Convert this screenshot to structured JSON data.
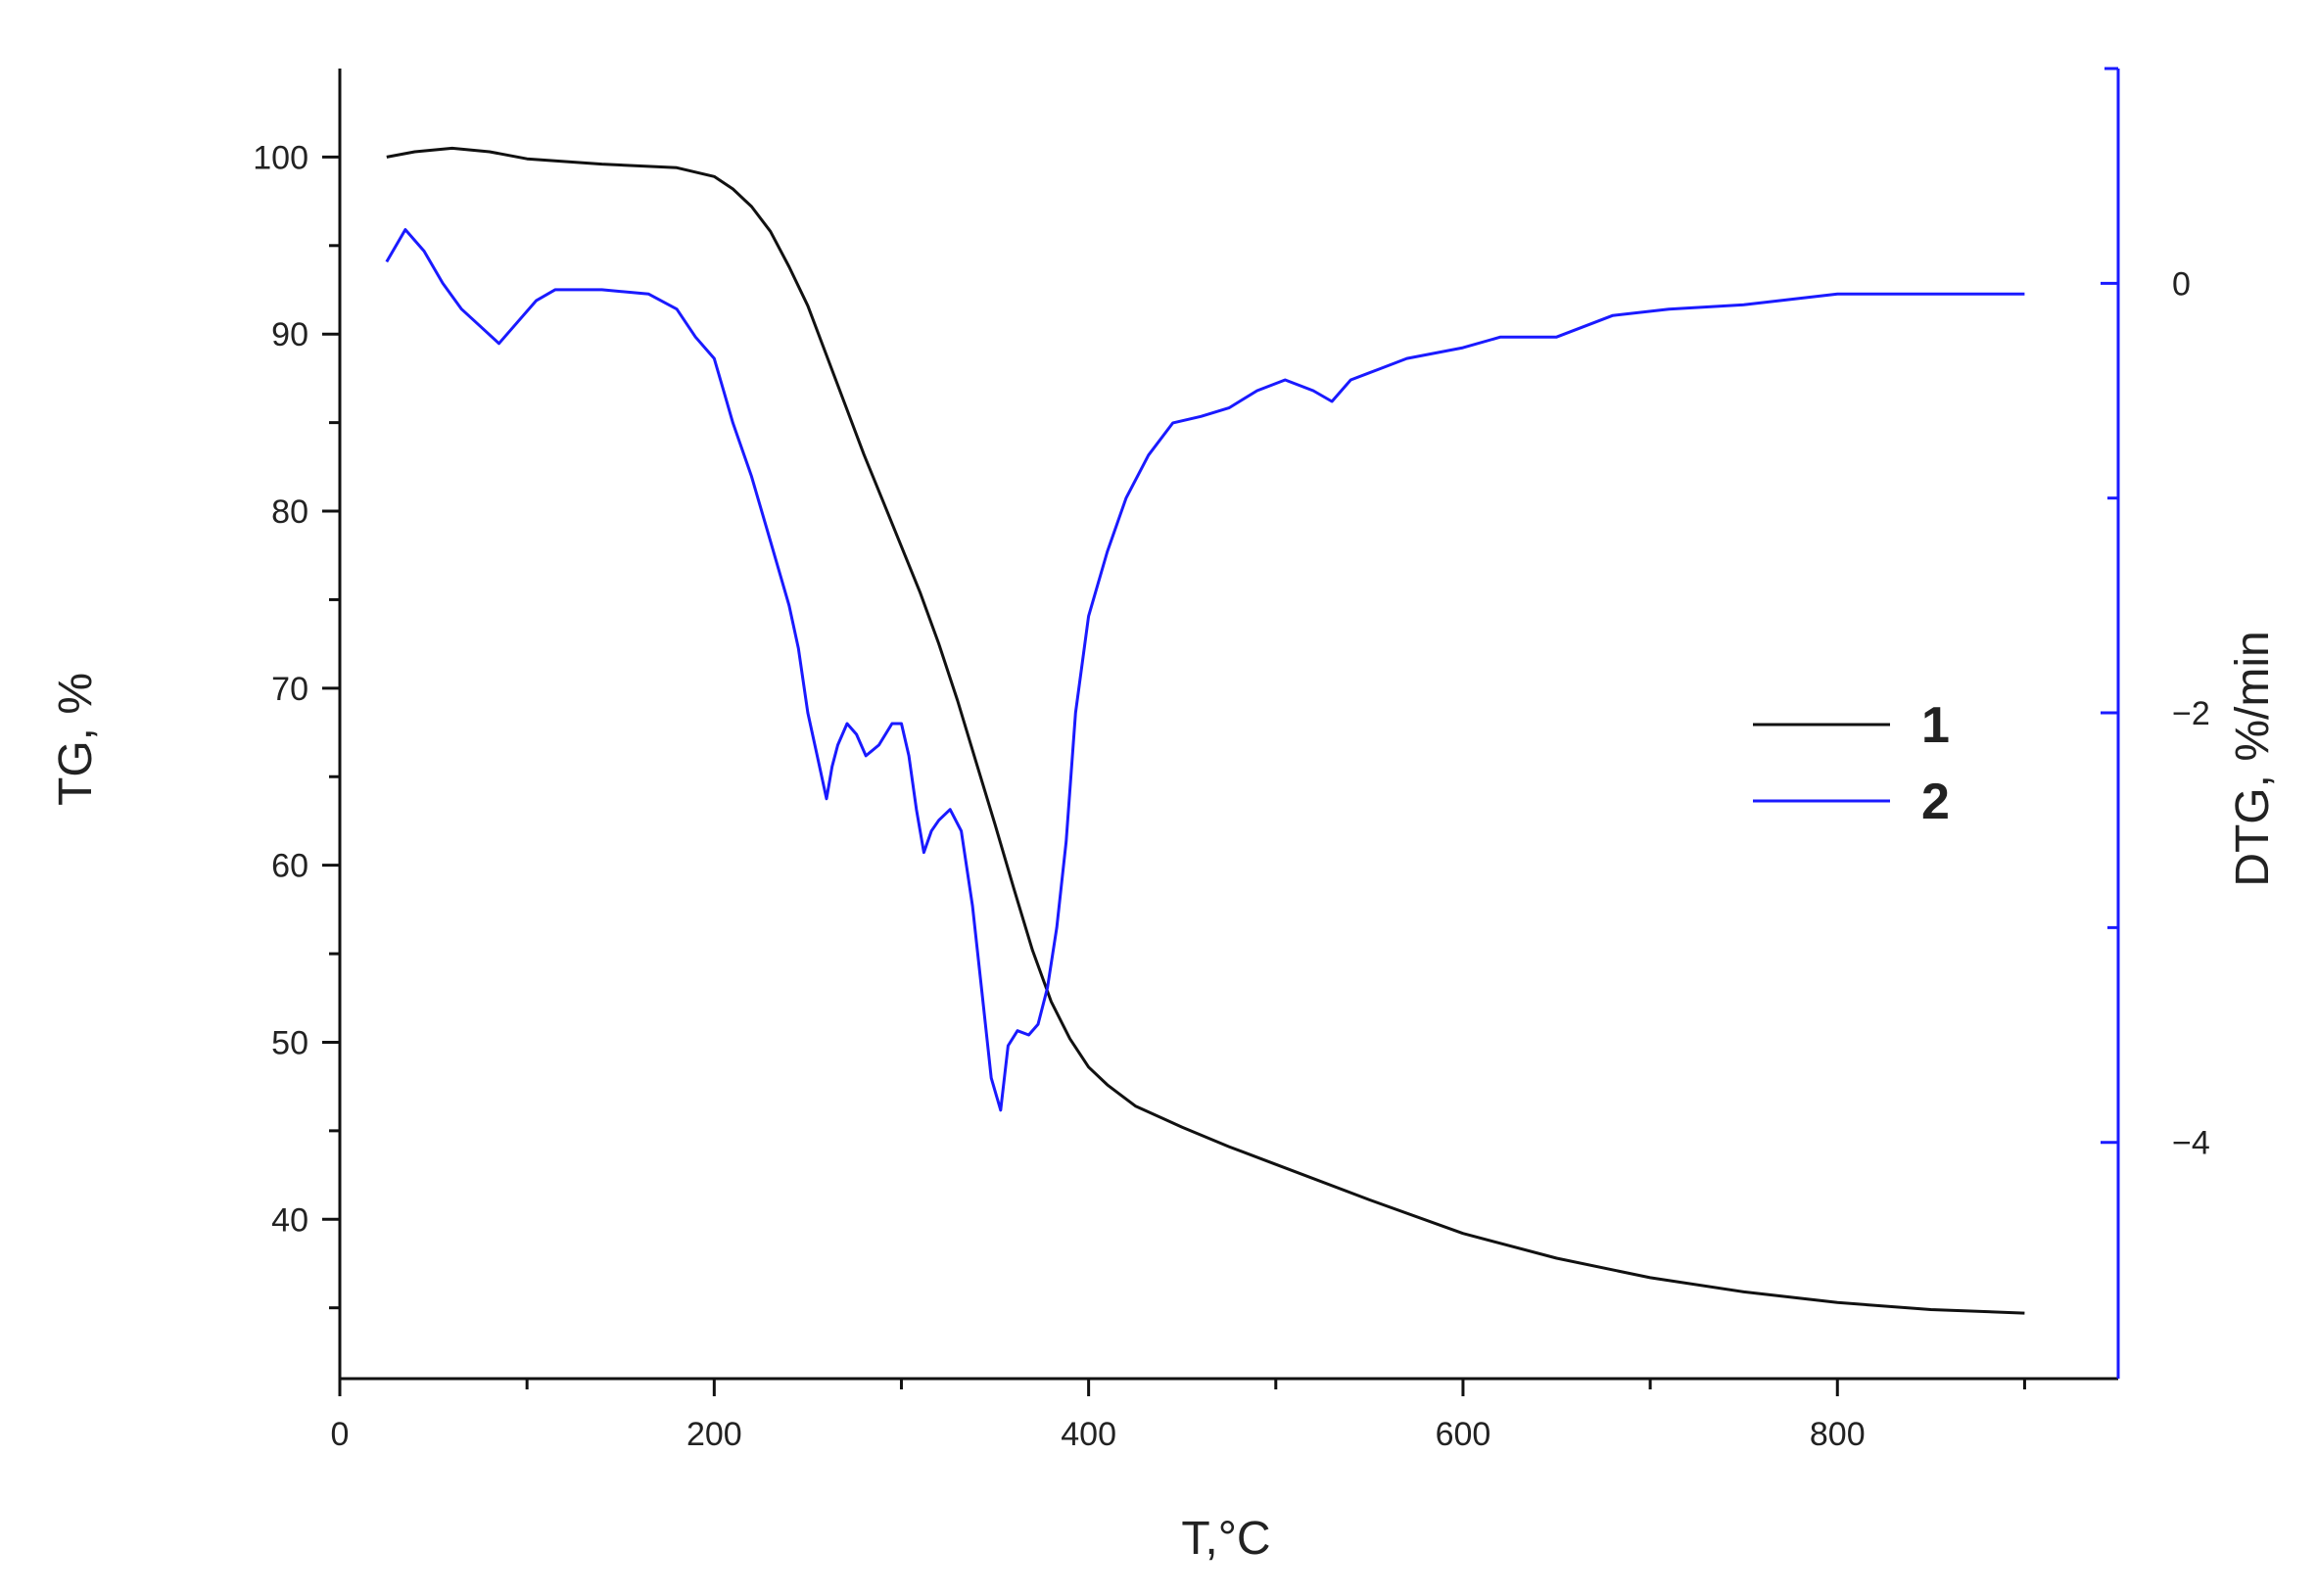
{
  "chart_data": {
    "type": "line",
    "title": "",
    "xlabel": "T,°C",
    "ylabel_left": "TG, %",
    "ylabel_right": "DTG, %/min",
    "xlim": [
      0,
      950
    ],
    "ylim_left": [
      31,
      105
    ],
    "ylim_right": [
      -5.1,
      1.0
    ],
    "x_ticks": [
      0,
      200,
      400,
      600,
      800
    ],
    "y_left_ticks": [
      40,
      50,
      60,
      70,
      80,
      90,
      100
    ],
    "y_right_ticks": [
      0,
      -2,
      -4
    ],
    "x_tick_labels": [
      "0",
      "200",
      "400",
      "600",
      "800"
    ],
    "y_left_tick_labels": [
      "40",
      "50",
      "60",
      "70",
      "80",
      "90",
      "100"
    ],
    "y_right_tick_labels": [
      "0",
      "−2",
      "−4"
    ],
    "grid": false,
    "legend_position": "center-right",
    "series": [
      {
        "name": "1",
        "axis": "left",
        "color": "#111111",
        "points": [
          [
            25,
            100
          ],
          [
            40,
            100.3
          ],
          [
            60,
            100.5
          ],
          [
            80,
            100.3
          ],
          [
            100,
            99.9
          ],
          [
            140,
            99.6
          ],
          [
            180,
            99.4
          ],
          [
            200,
            98.9
          ],
          [
            210,
            98.2
          ],
          [
            220,
            97.2
          ],
          [
            230,
            95.8
          ],
          [
            240,
            93.8
          ],
          [
            250,
            91.6
          ],
          [
            260,
            88.8
          ],
          [
            270,
            86.0
          ],
          [
            280,
            83.2
          ],
          [
            290,
            80.6
          ],
          [
            300,
            78.0
          ],
          [
            310,
            75.4
          ],
          [
            320,
            72.5
          ],
          [
            330,
            69.3
          ],
          [
            340,
            65.8
          ],
          [
            350,
            62.3
          ],
          [
            360,
            58.7
          ],
          [
            370,
            55.2
          ],
          [
            380,
            52.3
          ],
          [
            390,
            50.2
          ],
          [
            400,
            48.6
          ],
          [
            410,
            47.6
          ],
          [
            425,
            46.4
          ],
          [
            450,
            45.2
          ],
          [
            475,
            44.1
          ],
          [
            500,
            43.1
          ],
          [
            550,
            41.1
          ],
          [
            600,
            39.2
          ],
          [
            650,
            37.8
          ],
          [
            700,
            36.7
          ],
          [
            750,
            35.9
          ],
          [
            800,
            35.3
          ],
          [
            850,
            34.9
          ],
          [
            900,
            34.7
          ]
        ]
      },
      {
        "name": "2",
        "axis": "right",
        "color": "#1a1aff",
        "points": [
          [
            25,
            0.1
          ],
          [
            35,
            0.25
          ],
          [
            45,
            0.15
          ],
          [
            55,
            0.0
          ],
          [
            65,
            -0.12
          ],
          [
            75,
            -0.2
          ],
          [
            85,
            -0.28
          ],
          [
            95,
            -0.18
          ],
          [
            105,
            -0.08
          ],
          [
            115,
            -0.03
          ],
          [
            140,
            -0.03
          ],
          [
            165,
            -0.05
          ],
          [
            180,
            -0.12
          ],
          [
            190,
            -0.25
          ],
          [
            200,
            -0.35
          ],
          [
            205,
            -0.5
          ],
          [
            210,
            -0.65
          ],
          [
            220,
            -0.9
          ],
          [
            230,
            -1.2
          ],
          [
            240,
            -1.5
          ],
          [
            245,
            -1.7
          ],
          [
            250,
            -2.0
          ],
          [
            255,
            -2.2
          ],
          [
            260,
            -2.4
          ],
          [
            263,
            -2.25
          ],
          [
            266,
            -2.15
          ],
          [
            271,
            -2.05
          ],
          [
            276,
            -2.1
          ],
          [
            281,
            -2.2
          ],
          [
            288,
            -2.15
          ],
          [
            295,
            -2.05
          ],
          [
            300,
            -2.05
          ],
          [
            304,
            -2.2
          ],
          [
            308,
            -2.45
          ],
          [
            312,
            -2.65
          ],
          [
            316,
            -2.55
          ],
          [
            320,
            -2.5
          ],
          [
            326,
            -2.45
          ],
          [
            332,
            -2.55
          ],
          [
            338,
            -2.9
          ],
          [
            343,
            -3.3
          ],
          [
            348,
            -3.7
          ],
          [
            353,
            -3.85
          ],
          [
            357,
            -3.55
          ],
          [
            362,
            -3.48
          ],
          [
            368,
            -3.5
          ],
          [
            373,
            -3.45
          ],
          [
            378,
            -3.28
          ],
          [
            383,
            -3.0
          ],
          [
            388,
            -2.6
          ],
          [
            393,
            -2.0
          ],
          [
            400,
            -1.55
          ],
          [
            410,
            -1.25
          ],
          [
            420,
            -1.0
          ],
          [
            432,
            -0.8
          ],
          [
            445,
            -0.65
          ],
          [
            460,
            -0.62
          ],
          [
            475,
            -0.58
          ],
          [
            490,
            -0.5
          ],
          [
            505,
            -0.45
          ],
          [
            520,
            -0.5
          ],
          [
            530,
            -0.55
          ],
          [
            540,
            -0.45
          ],
          [
            555,
            -0.4
          ],
          [
            570,
            -0.35
          ],
          [
            600,
            -0.3
          ],
          [
            620,
            -0.25
          ],
          [
            650,
            -0.25
          ],
          [
            680,
            -0.15
          ],
          [
            710,
            -0.12
          ],
          [
            750,
            -0.1
          ],
          [
            800,
            -0.05
          ],
          [
            850,
            -0.05
          ],
          [
            900,
            -0.05
          ]
        ]
      }
    ]
  }
}
